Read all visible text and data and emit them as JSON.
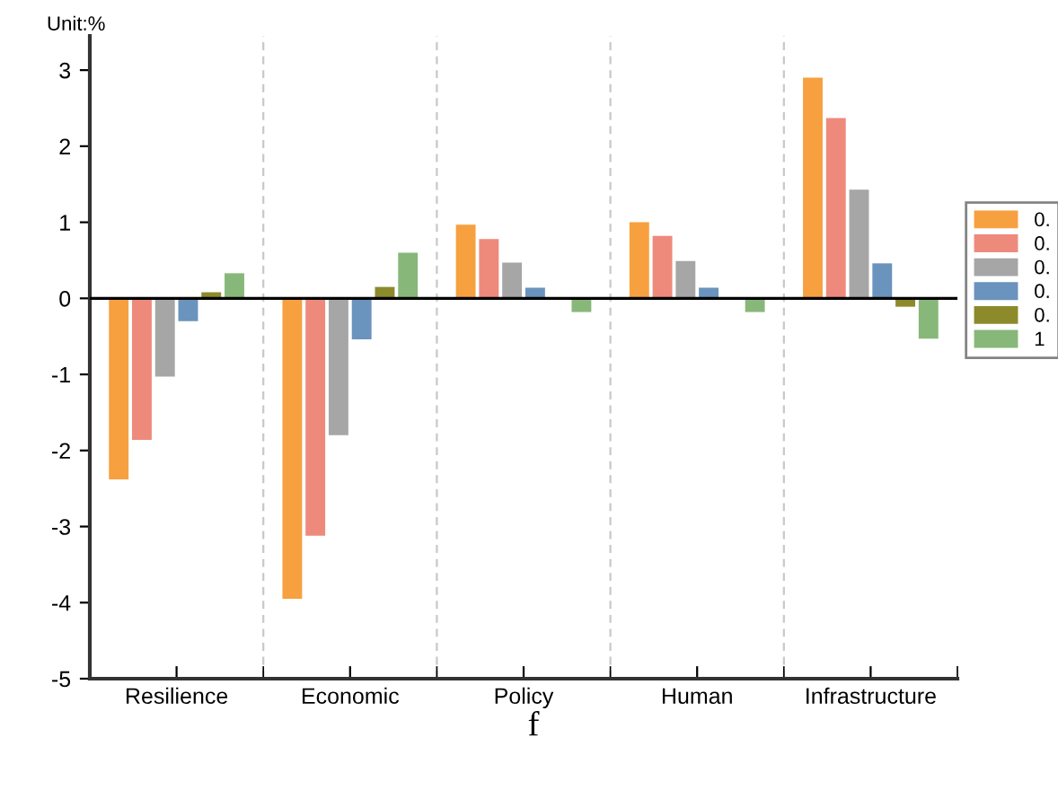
{
  "chart_data": {
    "type": "bar",
    "categories": [
      "Resilience",
      "Economic",
      "Policy",
      "Human",
      "Infrastructure"
    ],
    "series": [
      {
        "name": "0.",
        "color": "#f7a040",
        "values": [
          -2.38,
          -3.95,
          0.97,
          1.0,
          2.9
        ]
      },
      {
        "name": "0.",
        "color": "#ee8a7c",
        "values": [
          -1.86,
          -3.12,
          0.78,
          0.82,
          2.37
        ]
      },
      {
        "name": "0.",
        "color": "#a6a6a6",
        "values": [
          -1.03,
          -1.8,
          0.47,
          0.49,
          1.43
        ]
      },
      {
        "name": "0.",
        "color": "#6a93bd",
        "values": [
          -0.3,
          -0.54,
          0.14,
          0.14,
          0.46
        ]
      },
      {
        "name": "0.",
        "color": "#8c8a2a",
        "values": [
          0.08,
          0.15,
          null,
          null,
          -0.11
        ]
      },
      {
        "name": "1",
        "color": "#88b77a",
        "values": [
          0.33,
          0.6,
          -0.18,
          -0.18,
          -0.53
        ]
      }
    ],
    "ylim": [
      -5,
      3.45
    ],
    "yticks": [
      -5,
      -4,
      -3,
      -2,
      -1,
      0,
      1,
      2,
      3
    ],
    "grid": "x",
    "legend": "right",
    "ref_lines": [
      {
        "axis": "y",
        "value": 0,
        "color": "#000000"
      }
    ],
    "annotations": [
      "Unit:%",
      "f"
    ]
  }
}
